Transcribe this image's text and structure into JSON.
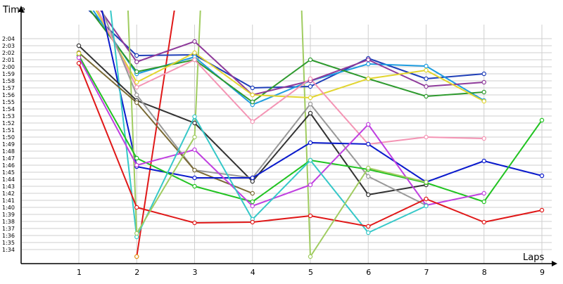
{
  "chart_data": {
    "type": "line",
    "xlabel": "Laps",
    "ylabel": "Time",
    "ylim_seconds": [
      92,
      128
    ],
    "grid": true,
    "x": [
      1,
      2,
      3,
      4,
      5,
      6,
      7,
      8,
      9
    ],
    "x_tick_labels": [
      "1",
      "2",
      "3",
      "4",
      "5",
      "6",
      "7",
      "8",
      "9"
    ],
    "y_tick_labels": [
      "1:34",
      "1:35",
      "1:36",
      "1:37",
      "1:38",
      "1:39",
      "1:40",
      "1:41",
      "1:42",
      "1:43",
      "1:44",
      "1:45",
      "1:46",
      "1:47",
      "1:48",
      "1:49",
      "1:50",
      "1:51",
      "1:52",
      "1:53",
      "1:54",
      "1:55",
      "1:56",
      "1:57",
      "1:58",
      "1:59",
      "2:00",
      "2:01",
      "2:02",
      "2:03",
      "2:04"
    ],
    "series": [
      {
        "color": "#1f3fb8",
        "values": [
          null,
          121.6,
          121.7,
          117.0,
          117.2,
          121.2,
          118.3,
          119.0,
          null
        ]
      },
      {
        "color": "#1f9de0",
        "values": [
          null,
          119.0,
          121.4,
          114.6,
          118.0,
          120.4,
          120.1,
          115.2,
          null
        ]
      },
      {
        "color": "#2e9a2e",
        "values": [
          null,
          119.3,
          121.0,
          115.0,
          121.0,
          118.3,
          115.8,
          116.4,
          null
        ]
      },
      {
        "color": "#8e3a9a",
        "values": [
          null,
          120.7,
          123.6,
          116.0,
          118.0,
          121.0,
          117.2,
          117.8,
          null
        ]
      },
      {
        "color": "#e2d530",
        "values": [
          null,
          117.8,
          122.0,
          116.0,
          115.6,
          118.3,
          119.5,
          115.1,
          null
        ]
      },
      {
        "color": "#f494b4",
        "values": [
          null,
          117.1,
          121.0,
          112.2,
          118.3,
          109.0,
          110.0,
          109.8,
          null
        ]
      },
      {
        "color": "#333333",
        "values": [
          123.0,
          115.2,
          112.0,
          103.7,
          113.4,
          101.8,
          103.2,
          null,
          null
        ]
      },
      {
        "color": "#999999",
        "values": [
          null,
          116.0,
          105.3,
          104.2,
          114.7,
          104.4,
          100.3,
          null,
          null
        ]
      },
      {
        "color": "#7a6a35",
        "values": [
          122.0,
          114.9,
          105.3,
          102.0,
          null,
          null,
          null,
          null,
          null
        ]
      },
      {
        "color": "#0a1acc",
        "values": [
          null,
          105.8,
          104.2,
          104.2,
          109.2,
          109.0,
          103.6,
          106.6,
          104.5
        ]
      },
      {
        "color": "#22c322",
        "values": [
          121.6,
          107.0,
          103.0,
          100.8,
          106.7,
          105.4,
          103.5,
          100.8,
          112.4
        ]
      },
      {
        "color": "#c040e0",
        "values": [
          121.3,
          106.0,
          108.2,
          100.2,
          103.2,
          111.8,
          100.3,
          102.0,
          null
        ]
      },
      {
        "color": "#36c8c8",
        "values": [
          null,
          95.8,
          112.9,
          98.3,
          106.7,
          96.4,
          100.2,
          null,
          null
        ]
      },
      {
        "color": "#e01818",
        "values": [
          120.5,
          100.0,
          97.8,
          97.9,
          98.8,
          97.3,
          101.2,
          97.9,
          99.6
        ]
      },
      {
        "color": "#a0cc60",
        "values": [
          null,
          96.3,
          110.0,
          null,
          93.0,
          105.6,
          103.6,
          null,
          null
        ]
      }
    ],
    "off_chart_segments": [
      {
        "color": "#1f3fb8",
        "from_x": 1.18,
        "from_y": 128,
        "to_x": 2,
        "to_y": 121.6
      },
      {
        "color": "#1f9de0",
        "from_x": 1.25,
        "from_y": 128,
        "to_x": 2,
        "to_y": 119.0
      },
      {
        "color": "#2e9a2e",
        "from_x": 1.2,
        "from_y": 128,
        "to_x": 2,
        "to_y": 119.3
      },
      {
        "color": "#8e3a9a",
        "from_x": 1.38,
        "from_y": 128,
        "to_x": 2,
        "to_y": 120.7
      },
      {
        "color": "#e2d530",
        "from_x": 1.3,
        "from_y": 128,
        "to_x": 2,
        "to_y": 117.8
      },
      {
        "color": "#f494b4",
        "from_x": 1.33,
        "from_y": 128,
        "to_x": 2,
        "to_y": 117.1
      },
      {
        "color": "#999999",
        "from_x": 1.4,
        "from_y": 128,
        "to_x": 2,
        "to_y": 116.0
      },
      {
        "color": "#0a1acc",
        "from_x": 1.4,
        "from_y": 128,
        "to_x": 2,
        "to_y": 105.8
      },
      {
        "color": "#36c8c8",
        "from_x": 1.55,
        "from_y": 128,
        "to_x": 2,
        "to_y": 95.8
      },
      {
        "color": "#a0cc60",
        "from_x": 1.85,
        "from_y": 128,
        "to_x": 2,
        "to_y": 96.3
      },
      {
        "color": "#e01818",
        "from_x": 2,
        "from_y": 93.0,
        "to_x": 2.65,
        "to_y": 128
      },
      {
        "color": "#a0cc60",
        "from_x": 3,
        "from_y": 110.0,
        "to_x": 3.1,
        "to_y": 128
      },
      {
        "color": "#a0cc60",
        "from_x": 4.85,
        "from_y": 128,
        "to_x": 5,
        "to_y": 93.0
      }
    ],
    "extra_points": [
      {
        "color": "#e01818",
        "x": 2,
        "y": 93.0
      },
      {
        "color": "#e2a020",
        "x": 2,
        "y": 93.0
      },
      {
        "color": "#e2d530",
        "x": 1,
        "y": 121.9
      }
    ]
  }
}
